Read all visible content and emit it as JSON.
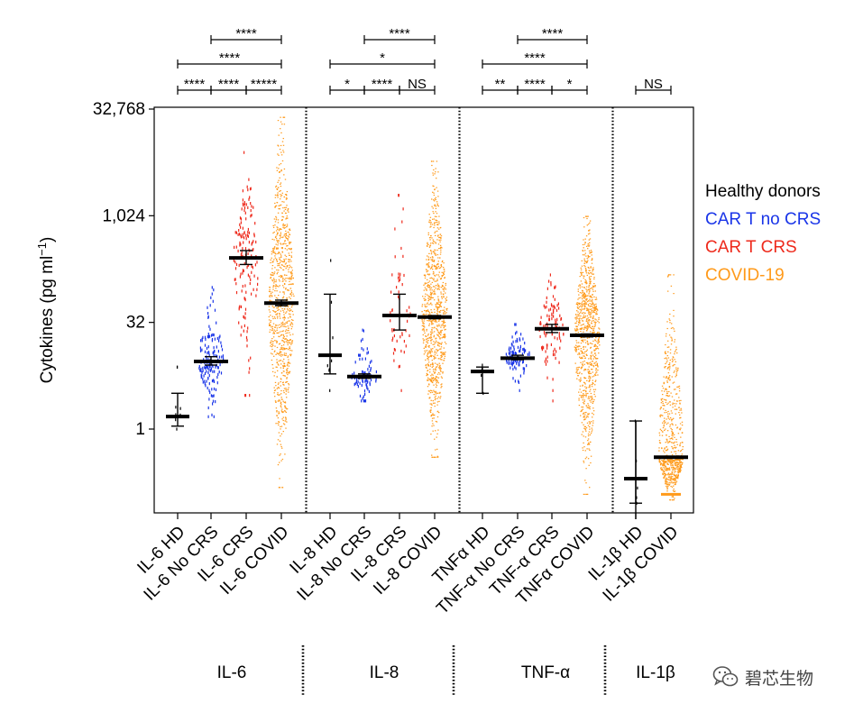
{
  "chart_data": {
    "type": "scatter",
    "ylabel": "Cytokines (pg ml−1)",
    "yscale": "log2",
    "ylim": [
      0.09,
      32768
    ],
    "yticks": [
      {
        "value": 1,
        "label": "1"
      },
      {
        "value": 32,
        "label": "32"
      },
      {
        "value": 1024,
        "label": "1,024"
      },
      {
        "value": 32768,
        "label": "32,768"
      }
    ],
    "categories": [
      "IL-6 HD",
      "IL-6 No CRS",
      "IL-6 CRS",
      "IL-6 COVID",
      "IL-8 HD",
      "IL-8 No CRS",
      "IL-8 CRS",
      "IL-8 COVID",
      "TNFα HD",
      "TNF-α No CRS",
      "TNF-α CRS",
      "TNFα COVID",
      "IL-1β HD",
      "IL-1β COVID"
    ],
    "groups": [
      {
        "category": "IL-6 HD",
        "group": "hd",
        "median": 1.5,
        "low": 1.1,
        "high": 3.2,
        "min": 1.0,
        "max": 7.5,
        "n": 8
      },
      {
        "category": "IL-6 No CRS",
        "group": "car_no_crs",
        "median": 9,
        "low": 8,
        "high": 10.5,
        "min": 1.5,
        "max": 100,
        "n": 150
      },
      {
        "category": "IL-6 CRS",
        "group": "car_crs",
        "median": 260,
        "low": 210,
        "high": 330,
        "min": 3,
        "max": 8000,
        "n": 150
      },
      {
        "category": "IL-6 COVID",
        "group": "covid",
        "median": 60,
        "low": 55,
        "high": 66,
        "min": 0.15,
        "max": 25000,
        "n": 900
      },
      {
        "category": "IL-8 HD",
        "group": "hd",
        "median": 11,
        "low": 6,
        "high": 80,
        "min": 3.5,
        "max": 240,
        "n": 9
      },
      {
        "category": "IL-8 No CRS",
        "group": "car_no_crs",
        "median": 5.5,
        "low": 5.2,
        "high": 6,
        "min": 2.5,
        "max": 25,
        "n": 80
      },
      {
        "category": "IL-8 CRS",
        "group": "car_crs",
        "median": 40,
        "low": 25,
        "high": 80,
        "min": 3.5,
        "max": 2000,
        "n": 60
      },
      {
        "category": "IL-8 COVID",
        "group": "covid",
        "median": 38,
        "low": 36,
        "high": 40,
        "min": 0.4,
        "max": 6000,
        "n": 900
      },
      {
        "category": "TNFα HD",
        "group": "hd",
        "median": 6.5,
        "low": 3.2,
        "high": 7.5,
        "min": 3.2,
        "max": 8,
        "n": 6
      },
      {
        "category": "TNF-α No CRS",
        "group": "car_no_crs",
        "median": 10,
        "low": 9.5,
        "high": 11,
        "min": 3.5,
        "max": 30,
        "n": 100
      },
      {
        "category": "TNF-α CRS",
        "group": "car_crs",
        "median": 26,
        "low": 23,
        "high": 30,
        "min": 2.5,
        "max": 150,
        "n": 100
      },
      {
        "category": "TNFα COVID",
        "group": "covid",
        "median": 21,
        "low": 20,
        "high": 22,
        "min": 0.12,
        "max": 1000,
        "n": 900
      },
      {
        "category": "IL-1β HD",
        "group": "hd",
        "median": 0.2,
        "low": 0.09,
        "high": 1.3,
        "min": 0.09,
        "max": 1.3,
        "n": 5
      },
      {
        "category": "IL-1β COVID",
        "group": "covid",
        "median": 0.4,
        "low": 0.4,
        "high": 0.4,
        "min": 0.1,
        "max": 150,
        "n": 700
      }
    ],
    "legend": [
      {
        "label": "Healthy donors",
        "color": "#000000"
      },
      {
        "label": "CAR T no CRS",
        "color": "#1a35e8"
      },
      {
        "label": "CAR T CRS",
        "color": "#ee2a1c"
      },
      {
        "label": "COVID-19",
        "color": "#ff9a1a"
      }
    ],
    "legend_position": "right",
    "colors": {
      "hd": "#000000",
      "car_no_crs": "#1a35e8",
      "car_crs": "#ee2a1c",
      "covid": "#ff9a1a"
    },
    "significance": [
      {
        "from": 1,
        "to": 3,
        "label": "****",
        "row": 2
      },
      {
        "from": 0,
        "to": 3,
        "label": "****",
        "row": 1
      },
      {
        "from": 0,
        "to": 1,
        "label": "****",
        "row": 0
      },
      {
        "from": 1,
        "to": 2,
        "label": "****",
        "row": 0
      },
      {
        "from": 2,
        "to": 3,
        "label": "*****",
        "row": 0
      },
      {
        "from": 5,
        "to": 7,
        "label": "****",
        "row": 2
      },
      {
        "from": 4,
        "to": 7,
        "label": "*",
        "row": 1
      },
      {
        "from": 4,
        "to": 5,
        "label": "*",
        "row": 0
      },
      {
        "from": 5,
        "to": 6,
        "label": "****",
        "row": 0
      },
      {
        "from": 6,
        "to": 7,
        "label": "NS",
        "row": 0
      },
      {
        "from": 9,
        "to": 11,
        "label": "****",
        "row": 2
      },
      {
        "from": 8,
        "to": 11,
        "label": "****",
        "row": 1
      },
      {
        "from": 8,
        "to": 9,
        "label": "**",
        "row": 0
      },
      {
        "from": 9,
        "to": 10,
        "label": "****",
        "row": 0
      },
      {
        "from": 10,
        "to": 11,
        "label": "*",
        "row": 0
      },
      {
        "from": 12,
        "to": 13,
        "label": "NS",
        "row": 0
      }
    ],
    "panels": [
      {
        "label": "IL-6"
      },
      {
        "label": "IL-8"
      },
      {
        "label": "TNF-α"
      },
      {
        "label": "IL-1β"
      }
    ]
  },
  "watermark": {
    "text": "碧芯生物",
    "icon": "wechat-icon"
  }
}
